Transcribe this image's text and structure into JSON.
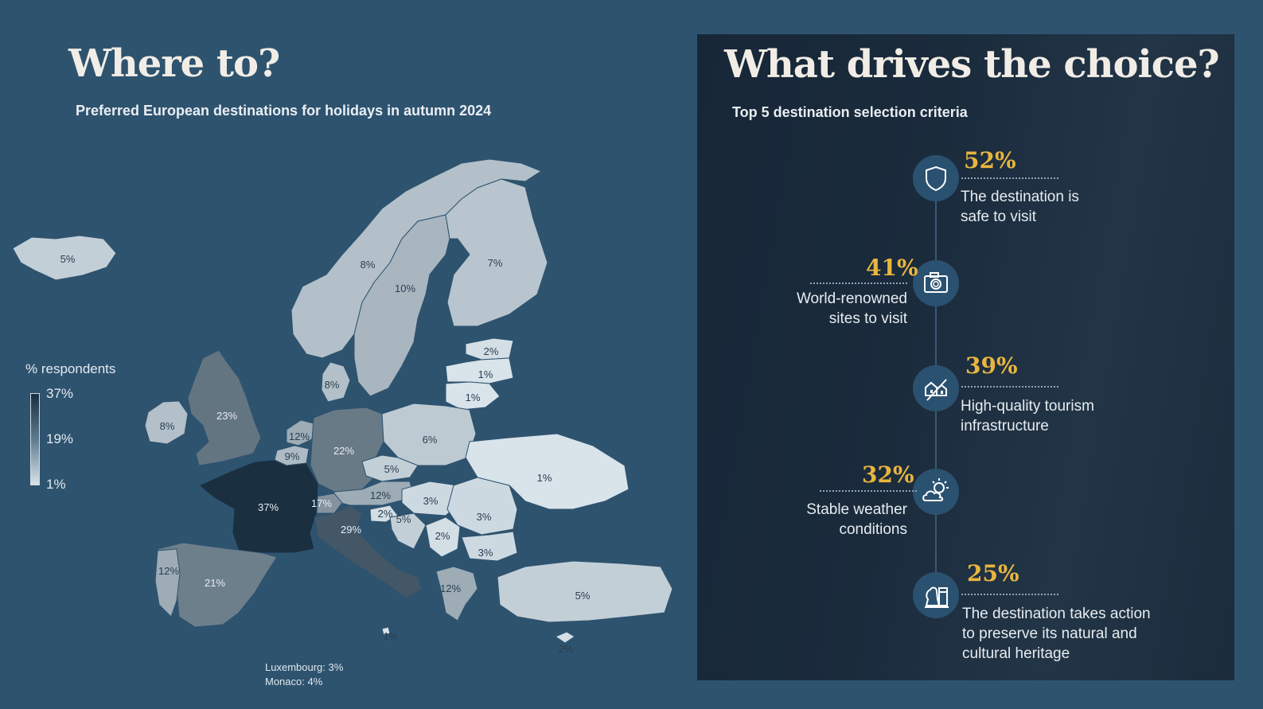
{
  "left": {
    "title": "Where to?",
    "subtitle": "Preferred European destinations for holidays in autumn 2024",
    "legend": {
      "title": "% respondents",
      "max": "37%",
      "mid": "19%",
      "min": "1%"
    },
    "footnote_lux": "Luxembourg: 3%",
    "footnote_monaco": "Monaco: 4%"
  },
  "right": {
    "title": "What drives the choice?",
    "subtitle": "Top 5 destination selection criteria",
    "criteria": [
      {
        "pct": "52%",
        "line1": "The destination is",
        "line2": "safe to visit",
        "line3": "",
        "icon": "shield-icon"
      },
      {
        "pct": "41%",
        "line1": "World-renowned",
        "line2": "sites to visit",
        "line3": "",
        "icon": "camera-icon"
      },
      {
        "pct": "39%",
        "line1": "High-quality tourism",
        "line2": "infrastructure",
        "line3": "",
        "icon": "buildings-icon"
      },
      {
        "pct": "32%",
        "line1": "Stable weather",
        "line2": "conditions",
        "line3": "",
        "icon": "sun-cloud-icon"
      },
      {
        "pct": "25%",
        "line1": "The destination takes action",
        "line2": "to preserve its natural and",
        "line3": "cultural heritage",
        "icon": "chess-heritage-icon"
      }
    ]
  },
  "colors": {
    "background": "#2e536f",
    "accent": "#e8b53e",
    "scale_high": "#1a2f40",
    "scale_low": "#d8e3ea"
  },
  "chart_data": [
    {
      "type": "heatmap",
      "title": "Preferred European destinations for holidays in autumn 2024",
      "legend_title": "% respondents",
      "scale": {
        "min": 1,
        "max": 37,
        "unit": "%"
      },
      "regions": [
        {
          "name": "Iceland",
          "value": 5
        },
        {
          "name": "Norway",
          "value": 8
        },
        {
          "name": "Sweden",
          "value": 10
        },
        {
          "name": "Finland",
          "value": 7
        },
        {
          "name": "Estonia",
          "value": 2
        },
        {
          "name": "Latvia",
          "value": 1
        },
        {
          "name": "Lithuania",
          "value": 1
        },
        {
          "name": "Denmark",
          "value": 8
        },
        {
          "name": "Ireland",
          "value": 8
        },
        {
          "name": "United Kingdom",
          "value": 23
        },
        {
          "name": "Netherlands",
          "value": 12
        },
        {
          "name": "Belgium",
          "value": 9
        },
        {
          "name": "Germany",
          "value": 22
        },
        {
          "name": "Poland",
          "value": 6
        },
        {
          "name": "Czechia",
          "value": 5
        },
        {
          "name": "Austria",
          "value": 12
        },
        {
          "name": "Switzerland",
          "value": 17
        },
        {
          "name": "France",
          "value": 37
        },
        {
          "name": "Italy",
          "value": 29
        },
        {
          "name": "Slovenia",
          "value": 2
        },
        {
          "name": "Croatia",
          "value": 5
        },
        {
          "name": "Hungary",
          "value": 3
        },
        {
          "name": "Romania",
          "value": 3
        },
        {
          "name": "Serbia",
          "value": 2
        },
        {
          "name": "Bulgaria",
          "value": 3
        },
        {
          "name": "Ukraine",
          "value": 1
        },
        {
          "name": "Greece",
          "value": 12
        },
        {
          "name": "Turkey",
          "value": 5
        },
        {
          "name": "Spain",
          "value": 21
        },
        {
          "name": "Portugal",
          "value": 12
        },
        {
          "name": "Malta",
          "value": 1
        },
        {
          "name": "Cyprus",
          "value": 2
        },
        {
          "name": "Luxembourg",
          "value": 3
        },
        {
          "name": "Monaco",
          "value": 4
        }
      ]
    },
    {
      "type": "table",
      "title": "Top 5 destination selection criteria",
      "categories": [
        "The destination is safe to visit",
        "World-renowned sites to visit",
        "High-quality tourism infrastructure",
        "Stable weather conditions",
        "The destination takes action to preserve its natural and cultural heritage"
      ],
      "values": [
        52,
        41,
        39,
        32,
        25
      ],
      "unit": "%"
    }
  ]
}
